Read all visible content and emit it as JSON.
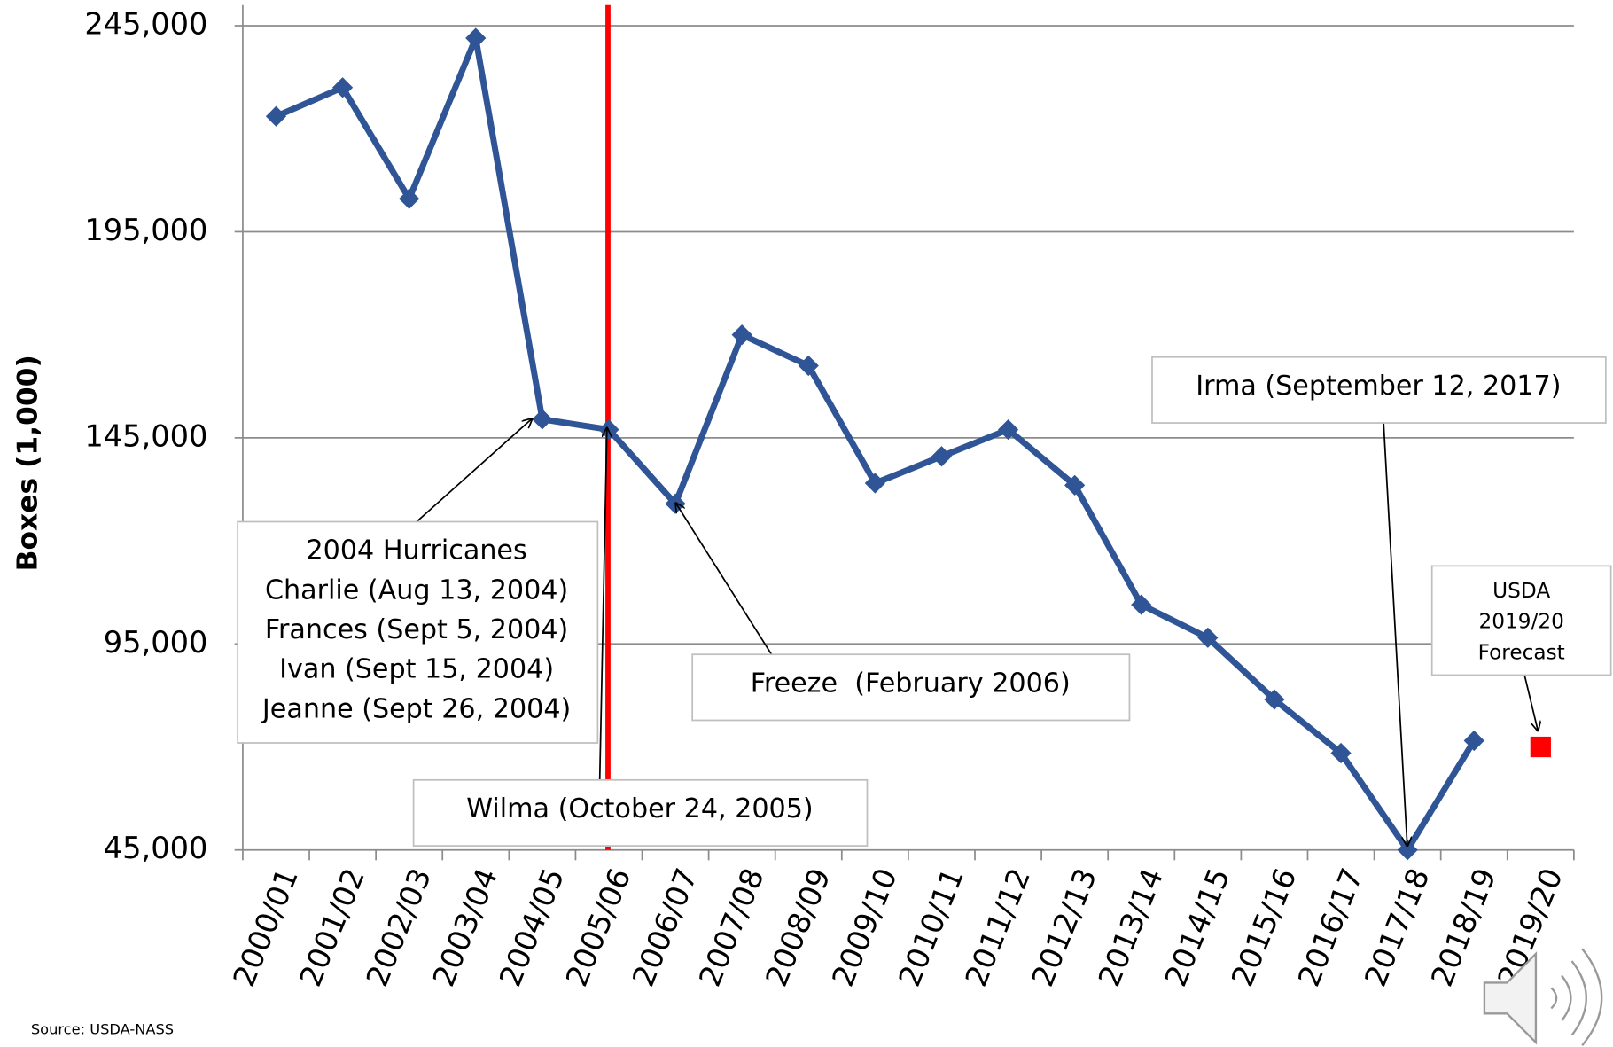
{
  "chart_data": {
    "type": "line",
    "y_label": "Boxes (1,000)",
    "categories": [
      "2000/01",
      "2001/02",
      "2002/03",
      "2003/04",
      "2004/05",
      "2005/06",
      "2006/07",
      "2007/08",
      "2008/09",
      "2009/10",
      "2010/11",
      "2011/12",
      "2012/13",
      "2013/14",
      "2014/15",
      "2015/16",
      "2016/17",
      "2017/18",
      "2018/19",
      "2019/20"
    ],
    "series": [
      {
        "color": "#2f5597",
        "marker": "diamond",
        "values": [
          223000,
          230000,
          203000,
          242000,
          149500,
          147000,
          129000,
          170000,
          162500,
          134000,
          140500,
          147000,
          133500,
          104500,
          96500,
          81500,
          68500,
          45000,
          71500,
          null
        ]
      },
      {
        "color": "#ff0000",
        "marker": "square",
        "values": [
          null,
          null,
          null,
          null,
          null,
          null,
          null,
          null,
          null,
          null,
          null,
          null,
          null,
          null,
          null,
          null,
          null,
          null,
          null,
          70000
        ]
      }
    ],
    "ylim": [
      45000,
      245000
    ],
    "yticks": [
      {
        "value": 45000,
        "label": "45,000"
      },
      {
        "value": 95000,
        "label": "95,000"
      },
      {
        "value": 145000,
        "label": "145,000"
      },
      {
        "value": 195000,
        "label": "195,000"
      },
      {
        "value": 245000,
        "label": "245,000"
      }
    ],
    "grid": true,
    "annotations": [
      {
        "lines": [
          "2004 Hurricanes",
          "Charlie (Aug 13, 2004)",
          "Frances (Sept 5, 2004)",
          "Ivan (Sept 15, 2004)",
          "Jeanne (Sept 26, 2004)"
        ]
      },
      {
        "lines": [
          "Wilma (October 24, 2005)"
        ]
      },
      {
        "lines": [
          "Freeze  (February 2006)"
        ]
      },
      {
        "lines": [
          "Irma (September 12, 2017)"
        ]
      },
      {
        "lines": [
          "USDA",
          "2019/20",
          "Forecast"
        ]
      }
    ],
    "source": "Source: USDA-NASS"
  }
}
